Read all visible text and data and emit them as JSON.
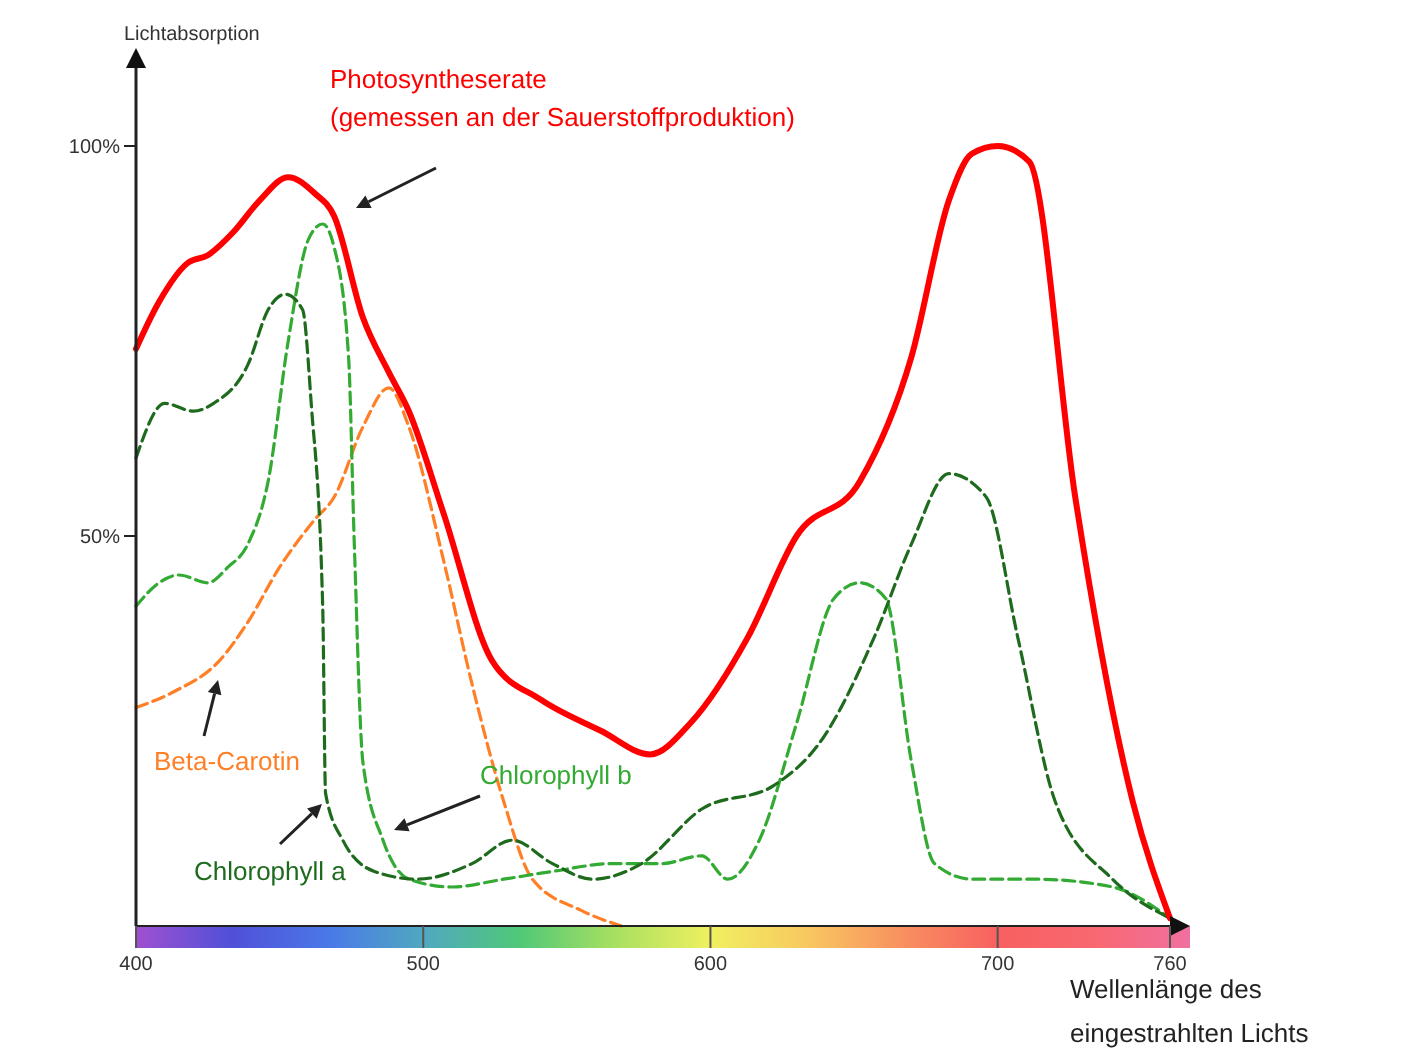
{
  "chart_data": {
    "type": "line",
    "xlabel": "Wellenlänge des eingestrahlten Lichts",
    "ylabel": "Lichtabsorption",
    "xlim": [
      400,
      760
    ],
    "xticks": [
      400,
      500,
      600,
      700,
      760
    ],
    "ylim": [
      0,
      110
    ],
    "yticks": [
      {
        "value": 50,
        "label": "50%"
      },
      {
        "value": 100,
        "label": "100%"
      }
    ],
    "grid": false,
    "marker": "none",
    "series": [
      {
        "name": "Photosyntheserate (gemessen an der Sauerstoffproduktion)",
        "color": "#ff0000",
        "line_style": "solid",
        "x": [
          400,
          408,
          418,
          425,
          434,
          443,
          453,
          462,
          469,
          479,
          488,
          495,
          507,
          524,
          541,
          562,
          579,
          593,
          613,
          630,
          652,
          670,
          683,
          691,
          700,
          711,
          727,
          747,
          760
        ],
        "values": [
          74,
          80,
          85,
          86,
          89,
          93,
          96,
          94,
          91,
          78,
          71,
          66,
          53,
          34,
          29,
          25,
          22,
          26,
          37,
          50,
          57,
          73,
          93,
          99,
          100,
          98,
          55,
          16,
          1
        ]
      },
      {
        "name": "Chlorophyll a",
        "color": "#1e6b1e",
        "line_style": "dashed",
        "x": [
          400,
          410,
          420,
          427,
          439,
          446,
          452,
          458,
          461,
          465,
          466,
          472,
          483,
          498,
          517,
          531,
          545,
          559,
          576,
          597,
          622,
          639,
          657,
          670,
          683,
          696,
          707,
          720,
          740,
          760
        ],
        "values": [
          60,
          67,
          66,
          67,
          72,
          79,
          81,
          79,
          67,
          41,
          17,
          11,
          7,
          6,
          8,
          11,
          8,
          6,
          8,
          15,
          18,
          24,
          37,
          49,
          58,
          55,
          37,
          16,
          6,
          1
        ]
      },
      {
        "name": "Chlorophyll b",
        "color": "#33aa33",
        "line_style": "dashed",
        "x": [
          400,
          408,
          415,
          425,
          432,
          439,
          446,
          453,
          460,
          465,
          469,
          474,
          476,
          479,
          486,
          495,
          510,
          528,
          545,
          566,
          583,
          597,
          606,
          617,
          630,
          643,
          652,
          661,
          670,
          678,
          691,
          713,
          740,
          760
        ],
        "values": [
          41,
          44,
          45,
          44,
          46,
          49,
          57,
          75,
          88,
          90,
          87,
          73,
          49,
          21,
          11,
          6,
          5,
          6,
          7,
          8,
          8,
          9,
          6,
          11,
          26,
          42,
          44,
          42,
          21,
          8,
          6,
          6,
          5,
          1
        ]
      },
      {
        "name": "Beta-Carotin",
        "color": "#ff7f27",
        "line_style": "dashed",
        "x": [
          400,
          413,
          429,
          439,
          450,
          462,
          469,
          479,
          488,
          495,
          507,
          517,
          528,
          538,
          555,
          569
        ],
        "values": [
          28,
          30,
          34,
          39,
          46,
          52,
          55,
          64,
          69,
          64,
          47,
          31,
          16,
          6,
          2,
          0
        ]
      }
    ]
  }
}
